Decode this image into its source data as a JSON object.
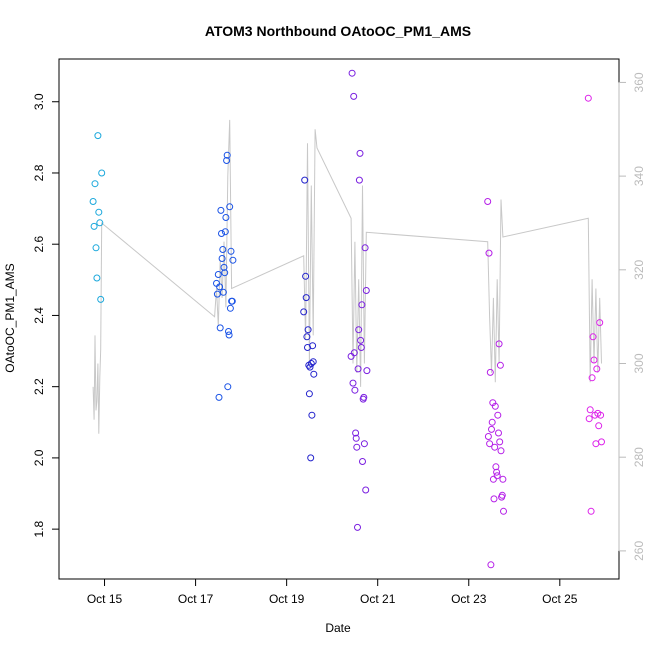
{
  "chart_data": {
    "type": "scatter",
    "title": "ATOM3 Northbound OAtoOC_PM1_AMS",
    "xlabel": "Date",
    "ylabel": "OAtoOC_PM1_AMS",
    "xlim": [
      "2017-10-14",
      "2017-10-26.3"
    ],
    "ylim": [
      1.66,
      3.12
    ],
    "x_ticks": [
      {
        "date": "2017-10-15",
        "label": "Oct 15"
      },
      {
        "date": "2017-10-17",
        "label": "Oct 17"
      },
      {
        "date": "2017-10-19",
        "label": "Oct 19"
      },
      {
        "date": "2017-10-21",
        "label": "Oct 21"
      },
      {
        "date": "2017-10-23",
        "label": "Oct 23"
      },
      {
        "date": "2017-10-25",
        "label": "Oct 25"
      }
    ],
    "y_ticks": [
      "1.8",
      "2.0",
      "2.2",
      "2.4",
      "2.6",
      "2.8",
      "3.0"
    ],
    "y2_ticks": [
      "260",
      "280",
      "300",
      "320",
      "340",
      "360"
    ],
    "y2lim": [
      254,
      365
    ],
    "grid": false,
    "legend": "none",
    "colors": {
      "point_gradient": [
        "#1ba8dc",
        "#1a53e6",
        "#2222cc",
        "#7a1fe0",
        "#b51fe8",
        "#dd22ea"
      ],
      "secondary_line": "#c8c8c8"
    },
    "series": [
      {
        "color": "#1ba8dc",
        "points": [
          [
            "2017-10-14 18:00",
            2.72
          ],
          [
            "2017-10-14 18:30",
            2.65
          ],
          [
            "2017-10-14 19:00",
            2.77
          ],
          [
            "2017-10-14 19:30",
            2.59
          ],
          [
            "2017-10-14 20:00",
            2.505
          ],
          [
            "2017-10-14 20:30",
            2.905
          ],
          [
            "2017-10-14 21:00",
            2.69
          ],
          [
            "2017-10-14 21:30",
            2.66
          ],
          [
            "2017-10-14 22:00",
            2.445
          ],
          [
            "2017-10-14 22:30",
            2.8
          ]
        ]
      },
      {
        "color": "#1a53e6",
        "points": [
          [
            "2017-10-17 11:00",
            2.49
          ],
          [
            "2017-10-17 11:30",
            2.46
          ],
          [
            "2017-10-17 12:00",
            2.515
          ],
          [
            "2017-10-17 12:20",
            2.17
          ],
          [
            "2017-10-17 12:40",
            2.48
          ],
          [
            "2017-10-17 13:00",
            2.365
          ],
          [
            "2017-10-17 13:20",
            2.695
          ],
          [
            "2017-10-17 13:40",
            2.63
          ],
          [
            "2017-10-17 14:00",
            2.56
          ],
          [
            "2017-10-17 14:20",
            2.585
          ],
          [
            "2017-10-17 14:40",
            2.465
          ],
          [
            "2017-10-17 15:00",
            2.535
          ],
          [
            "2017-10-17 15:20",
            2.52
          ],
          [
            "2017-10-17 15:40",
            2.635
          ],
          [
            "2017-10-17 16:00",
            2.675
          ],
          [
            "2017-10-17 16:20",
            2.835
          ],
          [
            "2017-10-17 16:40",
            2.85
          ],
          [
            "2017-10-17 17:00",
            2.2
          ],
          [
            "2017-10-17 17:20",
            2.355
          ],
          [
            "2017-10-17 17:40",
            2.345
          ],
          [
            "2017-10-17 18:00",
            2.705
          ],
          [
            "2017-10-17 18:20",
            2.42
          ],
          [
            "2017-10-17 18:40",
            2.58
          ],
          [
            "2017-10-17 19:00",
            2.44
          ],
          [
            "2017-10-17 19:20",
            2.44
          ],
          [
            "2017-10-17 19:40",
            2.555
          ]
        ]
      },
      {
        "color": "#2222cc",
        "points": [
          [
            "2017-10-19 09:00",
            2.41
          ],
          [
            "2017-10-19 09:30",
            2.78
          ],
          [
            "2017-10-19 10:00",
            2.51
          ],
          [
            "2017-10-19 10:20",
            2.45
          ],
          [
            "2017-10-19 10:40",
            2.34
          ],
          [
            "2017-10-19 11:00",
            2.31
          ],
          [
            "2017-10-19 11:20",
            2.36
          ],
          [
            "2017-10-19 11:40",
            2.26
          ],
          [
            "2017-10-19 12:00",
            2.18
          ],
          [
            "2017-10-19 12:20",
            2.255
          ],
          [
            "2017-10-19 12:40",
            2.0
          ],
          [
            "2017-10-19 13:00",
            2.265
          ],
          [
            "2017-10-19 13:20",
            2.12
          ],
          [
            "2017-10-19 13:40",
            2.315
          ],
          [
            "2017-10-19 14:00",
            2.27
          ],
          [
            "2017-10-19 14:20",
            2.235
          ]
        ]
      },
      {
        "color": "#7a1fe0",
        "points": [
          [
            "2017-10-20 10:00",
            2.285
          ],
          [
            "2017-10-20 10:30",
            3.08
          ],
          [
            "2017-10-20 11:00",
            2.21
          ],
          [
            "2017-10-20 11:20",
            3.015
          ],
          [
            "2017-10-20 11:40",
            2.295
          ],
          [
            "2017-10-20 12:00",
            2.19
          ],
          [
            "2017-10-20 12:20",
            2.07
          ],
          [
            "2017-10-20 12:40",
            2.055
          ],
          [
            "2017-10-20 13:00",
            2.03
          ],
          [
            "2017-10-20 13:20",
            1.805
          ],
          [
            "2017-10-20 13:40",
            2.25
          ],
          [
            "2017-10-20 14:00",
            2.36
          ],
          [
            "2017-10-20 14:20",
            2.78
          ],
          [
            "2017-10-20 14:40",
            2.855
          ],
          [
            "2017-10-20 15:00",
            2.33
          ],
          [
            "2017-10-20 15:20",
            2.31
          ],
          [
            "2017-10-20 15:40",
            2.43
          ],
          [
            "2017-10-20 16:00",
            1.99
          ],
          [
            "2017-10-20 16:20",
            2.165
          ],
          [
            "2017-10-20 16:40",
            2.17
          ],
          [
            "2017-10-20 17:00",
            2.04
          ],
          [
            "2017-10-20 17:20",
            2.59
          ],
          [
            "2017-10-20 17:40",
            1.91
          ],
          [
            "2017-10-20 18:00",
            2.47
          ],
          [
            "2017-10-20 18:20",
            2.245
          ]
        ]
      },
      {
        "color": "#b51fe8",
        "points": [
          [
            "2017-10-23 10:00",
            2.72
          ],
          [
            "2017-10-23 10:20",
            2.06
          ],
          [
            "2017-10-23 10:40",
            2.575
          ],
          [
            "2017-10-23 11:00",
            2.04
          ],
          [
            "2017-10-23 11:20",
            2.24
          ],
          [
            "2017-10-23 11:40",
            1.7
          ],
          [
            "2017-10-23 12:00",
            2.08
          ],
          [
            "2017-10-23 12:20",
            2.1
          ],
          [
            "2017-10-23 12:40",
            2.155
          ],
          [
            "2017-10-23 13:00",
            1.94
          ],
          [
            "2017-10-23 13:20",
            1.885
          ],
          [
            "2017-10-23 13:40",
            2.03
          ],
          [
            "2017-10-23 14:00",
            2.145
          ],
          [
            "2017-10-23 14:20",
            1.975
          ],
          [
            "2017-10-23 14:40",
            1.96
          ],
          [
            "2017-10-23 15:00",
            1.95
          ],
          [
            "2017-10-23 15:20",
            2.12
          ],
          [
            "2017-10-23 15:40",
            2.07
          ],
          [
            "2017-10-23 16:00",
            2.32
          ],
          [
            "2017-10-23 16:20",
            2.045
          ],
          [
            "2017-10-23 16:40",
            2.26
          ],
          [
            "2017-10-23 17:00",
            2.02
          ],
          [
            "2017-10-23 17:20",
            1.89
          ],
          [
            "2017-10-23 17:40",
            1.895
          ],
          [
            "2017-10-23 18:00",
            1.94
          ],
          [
            "2017-10-23 18:20",
            1.85
          ]
        ]
      },
      {
        "color": "#dd22ea",
        "points": [
          [
            "2017-10-25 15:00",
            3.01
          ],
          [
            "2017-10-25 15:30",
            2.11
          ],
          [
            "2017-10-25 16:00",
            2.135
          ],
          [
            "2017-10-25 16:30",
            1.85
          ],
          [
            "2017-10-25 17:00",
            2.225
          ],
          [
            "2017-10-25 17:30",
            2.34
          ],
          [
            "2017-10-25 18:00",
            2.275
          ],
          [
            "2017-10-25 18:30",
            2.12
          ],
          [
            "2017-10-25 19:00",
            2.04
          ],
          [
            "2017-10-25 19:30",
            2.25
          ],
          [
            "2017-10-25 20:00",
            2.125
          ],
          [
            "2017-10-25 20:30",
            2.09
          ],
          [
            "2017-10-25 21:00",
            2.38
          ],
          [
            "2017-10-25 21:30",
            2.12
          ],
          [
            "2017-10-25 22:00",
            2.045
          ]
        ]
      }
    ],
    "secondary_series": {
      "axis": "right",
      "style": "line",
      "points": [
        [
          "2017-10-14 18:00",
          295
        ],
        [
          "2017-10-14 18:30",
          288
        ],
        [
          "2017-10-14 19:00",
          306
        ],
        [
          "2017-10-14 19:30",
          290
        ],
        [
          "2017-10-14 20:00",
          292
        ],
        [
          "2017-10-14 20:30",
          300
        ],
        [
          "2017-10-14 21:00",
          285
        ],
        [
          "2017-10-14 21:30",
          297
        ],
        [
          "2017-10-14 22:00",
          303
        ],
        [
          "2017-10-14 22:30",
          330
        ],
        [
          "2017-10-17 10:00",
          310
        ],
        [
          "2017-10-17 11:00",
          316
        ],
        [
          "2017-10-17 12:00",
          308
        ],
        [
          "2017-10-17 13:00",
          322
        ],
        [
          "2017-10-17 14:00",
          314
        ],
        [
          "2017-10-17 15:00",
          326
        ],
        [
          "2017-10-17 16:00",
          312
        ],
        [
          "2017-10-17 17:00",
          340
        ],
        [
          "2017-10-17 18:00",
          352
        ],
        [
          "2017-10-17 19:00",
          316
        ],
        [
          "2017-10-19 09:00",
          323
        ],
        [
          "2017-10-19 10:00",
          305
        ],
        [
          "2017-10-19 11:00",
          347
        ],
        [
          "2017-10-19 12:00",
          300
        ],
        [
          "2017-10-19 13:00",
          338
        ],
        [
          "2017-10-19 14:00",
          306
        ],
        [
          "2017-10-19 15:00",
          350
        ],
        [
          "2017-10-19 16:00",
          346
        ],
        [
          "2017-10-20 10:00",
          331
        ],
        [
          "2017-10-20 11:00",
          300
        ],
        [
          "2017-10-20 12:00",
          326
        ],
        [
          "2017-10-20 13:00",
          298
        ],
        [
          "2017-10-20 14:00",
          318
        ],
        [
          "2017-10-20 15:00",
          295
        ],
        [
          "2017-10-20 16:00",
          338
        ],
        [
          "2017-10-20 17:00",
          300
        ],
        [
          "2017-10-20 18:00",
          328
        ],
        [
          "2017-10-23 10:00",
          326
        ],
        [
          "2017-10-23 11:00",
          310
        ],
        [
          "2017-10-23 12:00",
          298
        ],
        [
          "2017-10-23 13:00",
          314
        ],
        [
          "2017-10-23 14:00",
          296
        ],
        [
          "2017-10-23 15:00",
          318
        ],
        [
          "2017-10-23 16:00",
          300
        ],
        [
          "2017-10-23 17:00",
          335
        ],
        [
          "2017-10-23 18:00",
          327
        ],
        [
          "2017-10-25 15:00",
          331
        ],
        [
          "2017-10-25 16:00",
          296
        ],
        [
          "2017-10-25 17:00",
          318
        ],
        [
          "2017-10-25 18:00",
          300
        ],
        [
          "2017-10-25 19:00",
          316
        ],
        [
          "2017-10-25 20:00",
          298
        ],
        [
          "2017-10-25 21:00",
          314
        ],
        [
          "2017-10-25 22:00",
          300
        ]
      ]
    }
  }
}
